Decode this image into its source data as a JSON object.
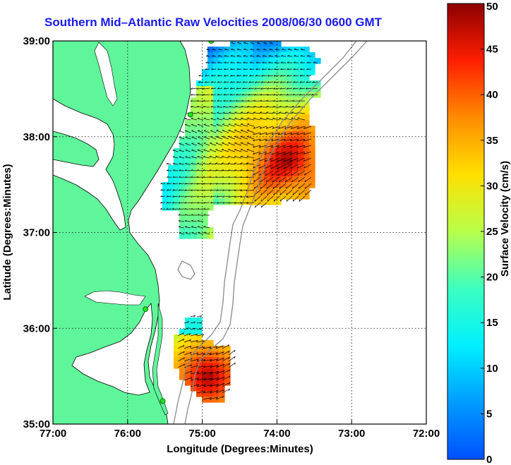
{
  "title": "Southern Mid–Atlantic Raw Velocities 2008/06/30 0600 GMT",
  "map": {
    "xlabel": "Longitude (Degrees:Minutes)",
    "ylabel": "Latitude (Degrees:Minutes)",
    "lon_range": [
      -77,
      -72
    ],
    "lat_range": [
      35,
      39
    ],
    "x_ticks": [
      {
        "value": -77,
        "label": "77:00"
      },
      {
        "value": -76,
        "label": "76:00"
      },
      {
        "value": -75,
        "label": "75:00"
      },
      {
        "value": -74,
        "label": "74:00"
      },
      {
        "value": -73,
        "label": "73:00"
      },
      {
        "value": -72,
        "label": "72:00"
      }
    ],
    "y_ticks": [
      {
        "value": 35,
        "label": "35:00"
      },
      {
        "value": 36,
        "label": "36:00"
      },
      {
        "value": 37,
        "label": "37:00"
      },
      {
        "value": 38,
        "label": "38:00"
      },
      {
        "value": 39,
        "label": "39:00"
      }
    ],
    "grid": "dotted",
    "land_color": "#5ff59a",
    "stations": [
      {
        "lon": -74.88,
        "lat": 39.0
      },
      {
        "lon": -75.16,
        "lat": 38.23
      },
      {
        "lon": -75.76,
        "lat": 36.2
      },
      {
        "lon": -75.53,
        "lat": 35.24
      }
    ]
  },
  "colorbar": {
    "label": "Surface Velocity (cm/s)",
    "units": "cm/s",
    "range": [
      0,
      50
    ],
    "ticks": [
      {
        "value": 0,
        "label": "0"
      },
      {
        "value": 5,
        "label": "5"
      },
      {
        "value": 10,
        "label": "10"
      },
      {
        "value": 15,
        "label": "15"
      },
      {
        "value": 20,
        "label": "20"
      },
      {
        "value": 25,
        "label": "25"
      },
      {
        "value": 30,
        "label": "30"
      },
      {
        "value": 35,
        "label": "35"
      },
      {
        "value": 40,
        "label": "40"
      },
      {
        "value": 45,
        "label": "45"
      },
      {
        "value": 50,
        "label": "50"
      }
    ]
  }
}
